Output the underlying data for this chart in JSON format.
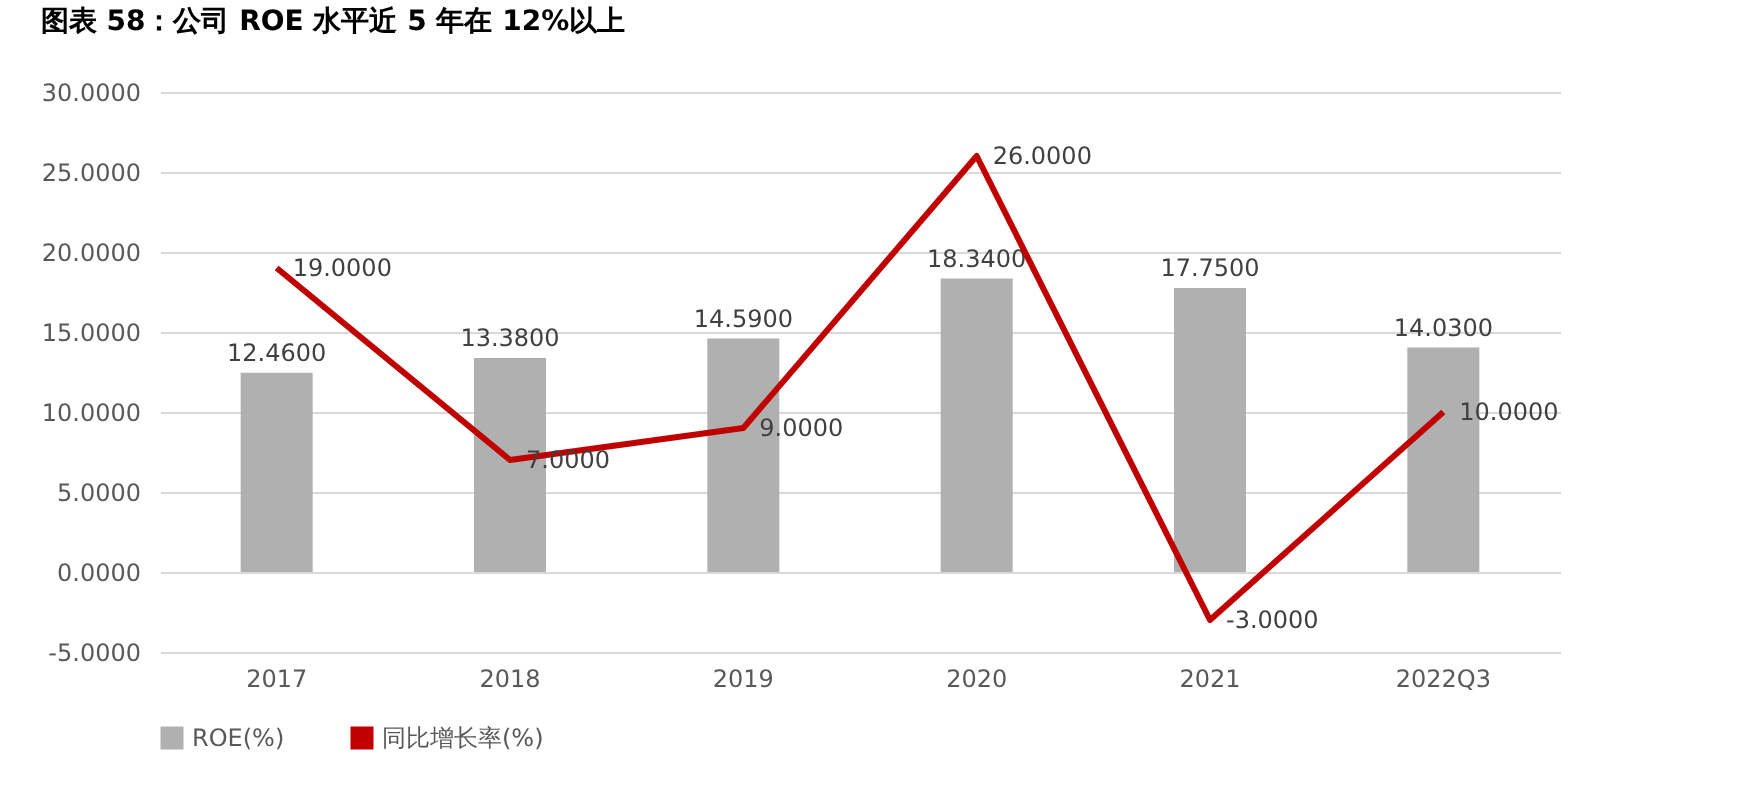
{
  "chart_data": {
    "type": "bar",
    "title": "图表 58：公司 ROE 水平近 5 年在 12%以上",
    "categories": [
      "2017",
      "2018",
      "2019",
      "2020",
      "2021",
      "2022Q3"
    ],
    "series": [
      {
        "name": "ROE(%)",
        "color": "#b0b0b0",
        "values": [
          12.46,
          13.38,
          14.59,
          18.34,
          17.75,
          14.03
        ],
        "value_labels": [
          "12.4600",
          "13.3800",
          "14.5900",
          "18.3400",
          "17.7500",
          "14.0300"
        ]
      },
      {
        "name": "同比增长率(%)",
        "type": "line",
        "color": "#c00000",
        "values": [
          19,
          7,
          9,
          26,
          -3,
          10
        ],
        "value_labels": [
          "19.0000",
          "7.0000",
          "9.0000",
          "26.0000",
          "-3.0000",
          "10.0000"
        ]
      }
    ],
    "ylim": [
      -5,
      30
    ],
    "yticks": [
      {
        "value": -5,
        "label": "-5.0000"
      },
      {
        "value": 0,
        "label": "0.0000"
      },
      {
        "value": 5,
        "label": "5.0000"
      },
      {
        "value": 10,
        "label": "10.0000"
      },
      {
        "value": 15,
        "label": "15.0000"
      },
      {
        "value": 20,
        "label": "20.0000"
      },
      {
        "value": 25,
        "label": "25.0000"
      },
      {
        "value": 30,
        "label": "30.0000"
      }
    ],
    "grid": "y",
    "legend": "bottom",
    "marker": "none"
  }
}
